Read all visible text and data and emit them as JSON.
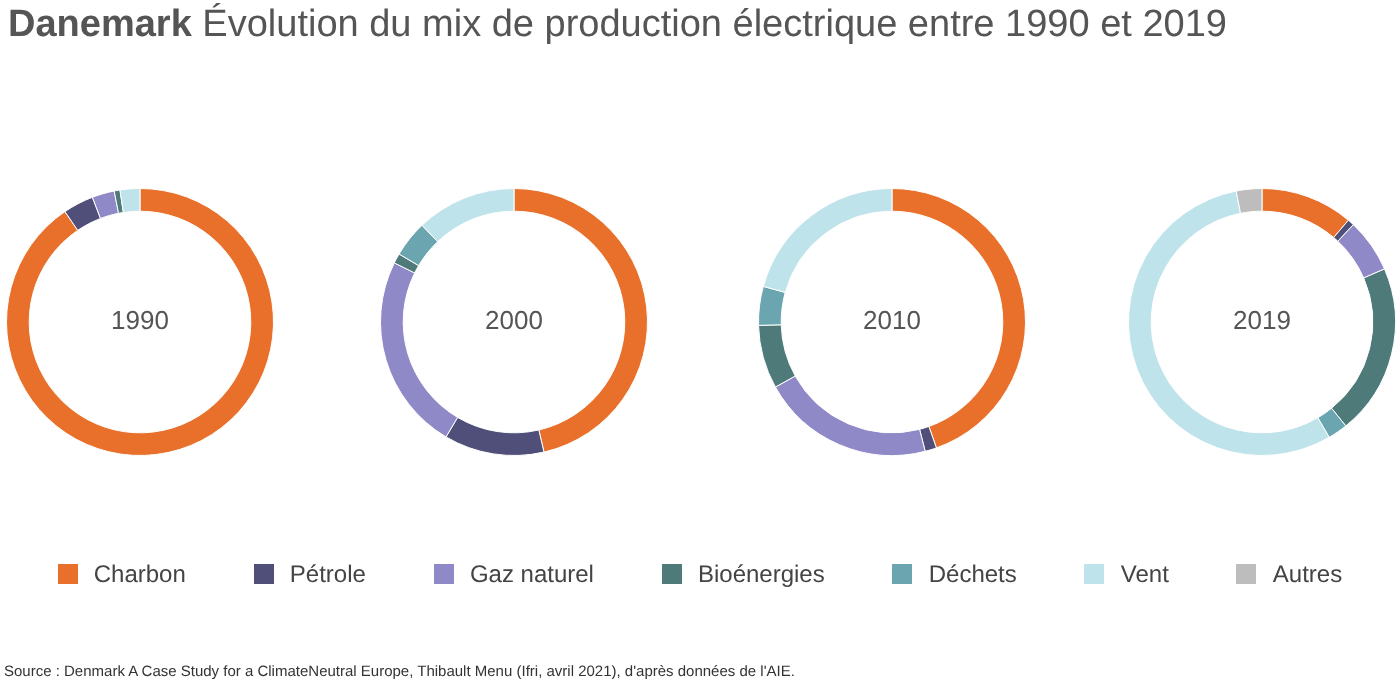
{
  "chart_data": {
    "type": "donut",
    "title": "Danemark Évolution du mix de production électrique entre 1990 et 2019",
    "categories": [
      "Charbon",
      "Pétrole",
      "Gaz naturel",
      "Bioénergies",
      "Déchets",
      "Vent",
      "Autres"
    ],
    "colors": [
      "#e8702a",
      "#4f4f7a",
      "#9089c8",
      "#4e7a7a",
      "#6aa5b0",
      "#bfe3ea",
      "#bdbdbd"
    ],
    "series": [
      {
        "name": "1990",
        "values": [
          90.5,
          3.7,
          2.7,
          0.7,
          0,
          2.4,
          0
        ]
      },
      {
        "name": "2000",
        "values": [
          46.4,
          12.1,
          23.8,
          1.2,
          4.4,
          12.1,
          0
        ]
      },
      {
        "name": "2010",
        "values": [
          44.6,
          1.4,
          20.9,
          7.7,
          4.7,
          20.7,
          0
        ]
      },
      {
        "name": "2019",
        "values": [
          11.2,
          0.8,
          6.5,
          20.7,
          2.4,
          55.3,
          3.1
        ]
      }
    ],
    "legend": "bottom",
    "annotations": [
      "Source : Denmark A Case Study for a ClimateNeutral Europe, Thibault Menu (Ifri, avril 2021), d'après données de l'AIE."
    ]
  }
}
